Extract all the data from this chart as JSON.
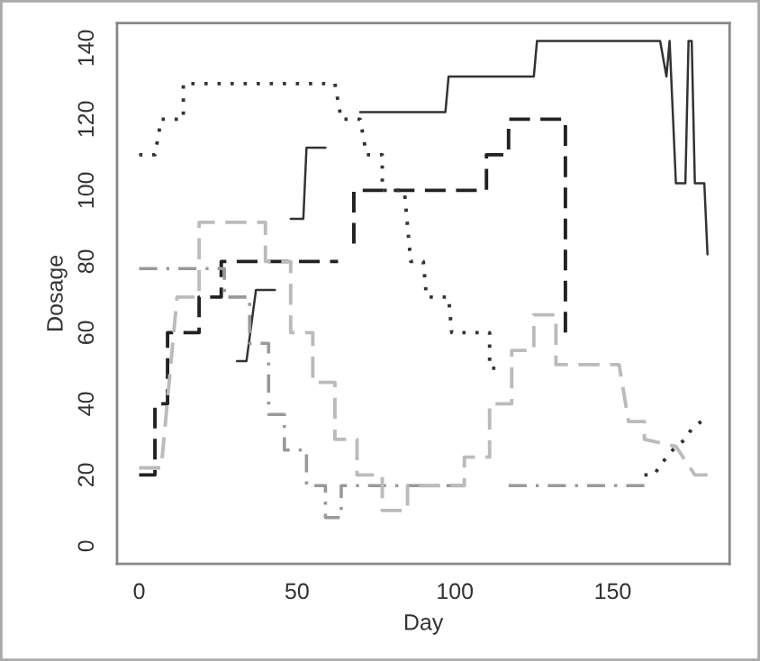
{
  "chart_data": {
    "type": "line",
    "xlabel": "Day",
    "ylabel": "Dosage",
    "xlim": [
      -7,
      187
    ],
    "ylim": [
      -5,
      147
    ],
    "xticks": [
      0,
      50,
      100,
      150
    ],
    "yticks": [
      0,
      20,
      40,
      60,
      80,
      100,
      120,
      140
    ],
    "grid": false,
    "legend": false,
    "series": [
      {
        "color": "#333333",
        "line_style": "solid",
        "x": [
          31,
          34,
          37,
          43,
          45,
          48,
          52,
          53,
          59,
          65,
          70,
          97,
          98,
          125,
          126,
          165,
          167,
          168,
          170,
          173,
          174,
          175,
          176,
          179,
          180
        ],
        "values": [
          52,
          52,
          72,
          72,
          null,
          92,
          92,
          112,
          112,
          null,
          122,
          122,
          132,
          132,
          142,
          142,
          132,
          142,
          102,
          102,
          142,
          142,
          102,
          102,
          82
        ]
      },
      {
        "color": "#222222",
        "line_style": "dashed",
        "x": [
          0,
          5,
          5,
          9,
          9,
          19,
          19,
          26,
          26,
          63,
          65,
          68,
          68,
          70,
          110,
          110,
          117,
          117,
          135,
          135
        ],
        "values": [
          20,
          20,
          40,
          40,
          60,
          60,
          70,
          70,
          80,
          80,
          null,
          85,
          100,
          100,
          100,
          110,
          110,
          120,
          120,
          60
        ]
      },
      {
        "color": "#333333",
        "line_style": "dotted",
        "x": [
          0,
          5,
          7,
          14,
          14,
          62,
          64,
          70,
          72,
          77,
          77,
          84,
          86,
          90,
          91,
          98,
          99,
          111,
          111,
          115,
          130,
          160,
          163,
          167,
          170,
          173,
          175,
          178
        ],
        "values": [
          110,
          110,
          120,
          120,
          130,
          130,
          120,
          120,
          110,
          110,
          100,
          100,
          80,
          80,
          70,
          70,
          60,
          60,
          50,
          50,
          null,
          20,
          20,
          25,
          28,
          30,
          33,
          35
        ]
      },
      {
        "color": "#999999",
        "line_style": "dashdot",
        "x": [
          0,
          27,
          27,
          35,
          35,
          41,
          41,
          46,
          46,
          53,
          53,
          59,
          59,
          64,
          64,
          102,
          110,
          117,
          160
        ],
        "values": [
          78,
          78,
          70,
          70,
          57,
          57,
          37,
          37,
          27,
          27,
          17,
          17,
          8,
          8,
          17,
          17,
          null,
          17,
          17
        ]
      },
      {
        "color": "#bbbbbb",
        "line_style": "dashed",
        "x": [
          0,
          7,
          12,
          19,
          19,
          40,
          40,
          48,
          48,
          55,
          55,
          62,
          62,
          69,
          69,
          77,
          77,
          85,
          85,
          103,
          103,
          111,
          111,
          118,
          118,
          125,
          125,
          132,
          132,
          152,
          155,
          160,
          160,
          170,
          176,
          180
        ],
        "values": [
          22,
          22,
          70,
          70,
          91,
          91,
          80,
          80,
          60,
          60,
          46,
          46,
          30,
          30,
          20,
          20,
          10,
          10,
          17,
          17,
          25,
          25,
          40,
          40,
          55,
          55,
          65,
          65,
          51,
          51,
          35,
          35,
          30,
          28,
          20,
          20
        ]
      }
    ]
  }
}
